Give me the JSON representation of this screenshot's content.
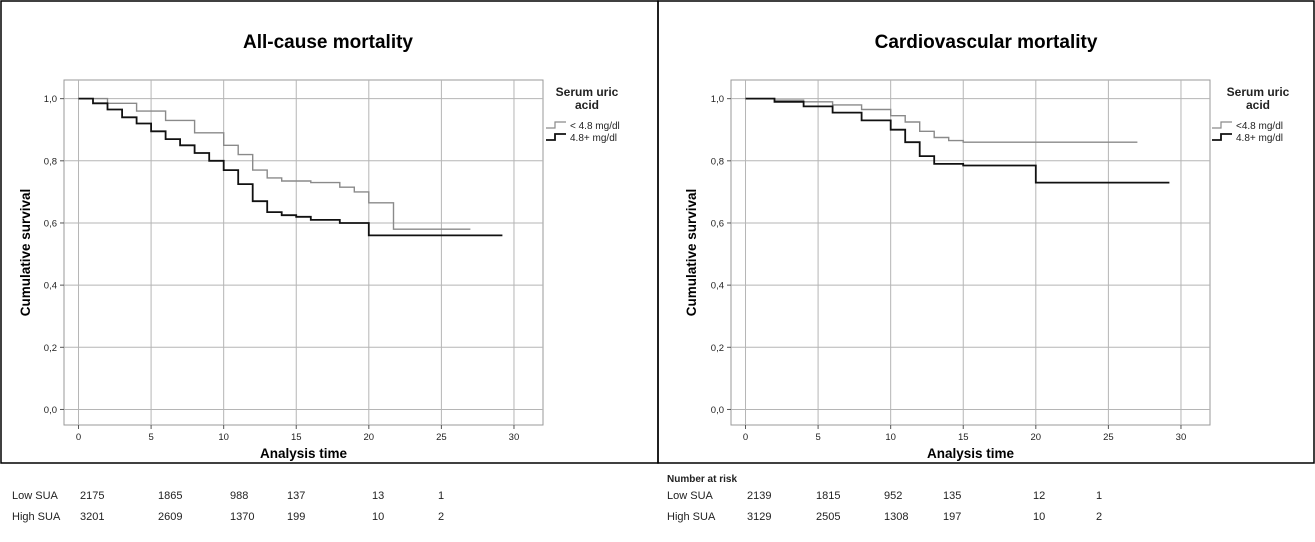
{
  "chart_data": [
    {
      "type": "line",
      "title": "All-cause mortality",
      "xlabel": "Analysis time",
      "ylabel": "Cumulative survival",
      "xlim": [
        -1,
        32
      ],
      "ylim": [
        -0.05,
        1.06
      ],
      "xticks": [
        "0",
        "5",
        "10",
        "15",
        "20",
        "25",
        "30"
      ],
      "yticks": [
        "0,0",
        "0,2",
        "0,4",
        "0,6",
        "0,8",
        "1,0"
      ],
      "grid": true,
      "legend": {
        "title": "Serum uric acid",
        "placement": "top-right"
      },
      "series": [
        {
          "name": "< 4.8 mg/dl",
          "color": "#8a8a8a",
          "x": [
            0,
            2,
            4,
            6,
            8,
            10,
            11,
            12,
            13,
            14,
            16,
            18,
            19,
            20,
            21.7,
            27
          ],
          "y": [
            1.0,
            0.985,
            0.96,
            0.93,
            0.89,
            0.85,
            0.82,
            0.77,
            0.745,
            0.735,
            0.73,
            0.715,
            0.7,
            0.665,
            0.58,
            0.58
          ]
        },
        {
          "name": "4.8+ mg/dl",
          "color": "#111111",
          "x": [
            0,
            1,
            2,
            3,
            4,
            5,
            6,
            7,
            8,
            9,
            10,
            11,
            12,
            13,
            14,
            15,
            16,
            18,
            20,
            29.2
          ],
          "y": [
            1.0,
            0.985,
            0.965,
            0.94,
            0.92,
            0.895,
            0.87,
            0.85,
            0.825,
            0.8,
            0.77,
            0.725,
            0.67,
            0.635,
            0.625,
            0.62,
            0.61,
            0.6,
            0.56,
            0.56
          ]
        }
      ]
    },
    {
      "type": "line",
      "title": "Cardiovascular mortality",
      "xlabel": "Analysis time",
      "ylabel": "Cumulative survival",
      "xlim": [
        -1,
        32
      ],
      "ylim": [
        -0.05,
        1.06
      ],
      "xticks": [
        "0",
        "5",
        "10",
        "15",
        "20",
        "25",
        "30"
      ],
      "yticks": [
        "0,0",
        "0,2",
        "0,4",
        "0,6",
        "0,8",
        "1,0"
      ],
      "grid": true,
      "legend": {
        "title": "Serum uric acid",
        "placement": "top-right"
      },
      "series": [
        {
          "name": "<4.8 mg/dl",
          "color": "#8a8a8a",
          "x": [
            0,
            2,
            4,
            6,
            8,
            10,
            11,
            12,
            13,
            14,
            15,
            27
          ],
          "y": [
            1.0,
            0.995,
            0.99,
            0.98,
            0.965,
            0.945,
            0.925,
            0.895,
            0.875,
            0.865,
            0.86,
            0.86
          ]
        },
        {
          "name": "4.8+ mg/dl",
          "color": "#111111",
          "x": [
            0,
            2,
            4,
            6,
            8,
            10,
            11,
            12,
            13,
            15,
            20,
            29.2
          ],
          "y": [
            1.0,
            0.99,
            0.975,
            0.955,
            0.93,
            0.9,
            0.86,
            0.815,
            0.79,
            0.785,
            0.73,
            0.73
          ]
        }
      ]
    }
  ],
  "risk_tables": [
    {
      "heading": "",
      "rows": [
        {
          "label": "Low SUA",
          "values": [
            "2175",
            "1865",
            "988",
            "137",
            "13",
            "1"
          ]
        },
        {
          "label": "High SUA",
          "values": [
            "3201",
            "2609",
            "1370",
            "199",
            "10",
            "2"
          ]
        }
      ]
    },
    {
      "heading": "Number at risk",
      "rows": [
        {
          "label": "Low SUA",
          "values": [
            "2139",
            "1815",
            "952",
            "135",
            "12",
            "1"
          ]
        },
        {
          "label": "High SUA",
          "values": [
            "3129",
            "2505",
            "1308",
            "197",
            "10",
            "2"
          ]
        }
      ]
    }
  ]
}
